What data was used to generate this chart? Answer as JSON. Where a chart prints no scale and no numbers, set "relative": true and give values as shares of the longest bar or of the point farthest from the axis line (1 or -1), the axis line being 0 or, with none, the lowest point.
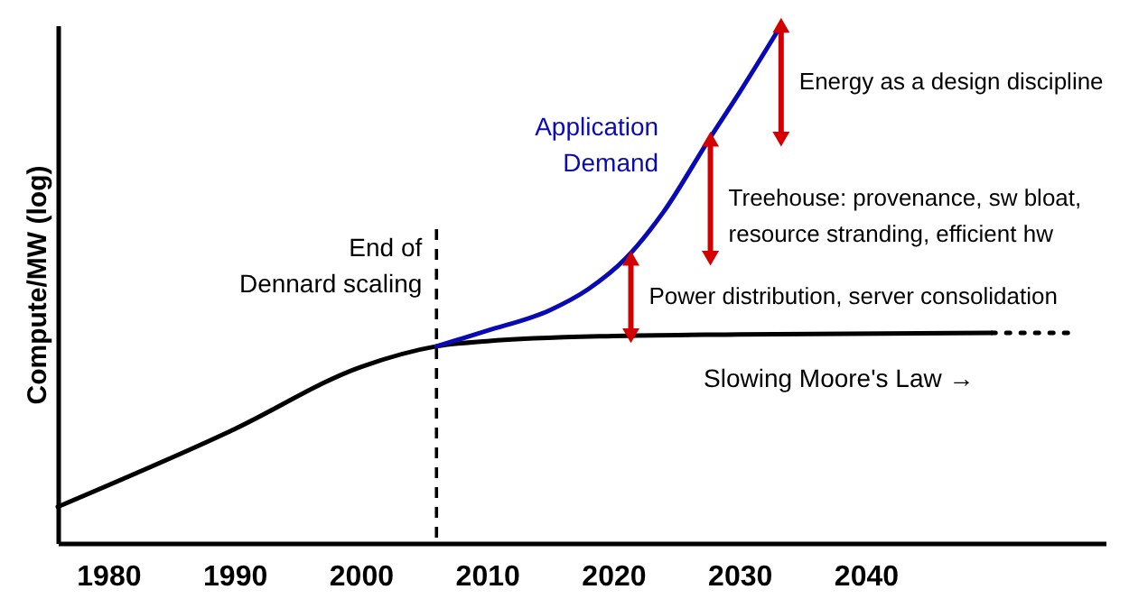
{
  "chart_data": {
    "type": "line",
    "relative": true,
    "ylabel": "Compute/MW (log)",
    "xlim": [
      1976,
      2059
    ],
    "xticks": [
      1980,
      1990,
      2000,
      2010,
      2020,
      2030,
      2040
    ],
    "tick_labels": "x",
    "grid": false,
    "marker": "none",
    "line_style": "solid",
    "series": [
      {
        "name": "Slowing Moore's Law →",
        "color": "#000000",
        "x": [
          1976,
          1990,
          2000,
          2006,
          2010,
          2020,
          2030,
          2050
        ],
        "values": [
          0.07,
          0.22,
          0.34,
          0.38,
          0.39,
          0.4,
          0.403,
          0.406
        ]
      },
      {
        "name": "Application Demand",
        "color": "#0a0ab4",
        "x": [
          2006,
          2010,
          2015,
          2018,
          2021,
          2024,
          2027.6,
          2030,
          2033.3
        ],
        "values": [
          0.38,
          0.41,
          0.45,
          0.49,
          0.55,
          0.64,
          0.78,
          0.87,
          1.0
        ]
      },
      {
        "color": "#000000",
        "line_style": "dotted",
        "x": [
          2050,
          2056.2
        ],
        "values": [
          0.406,
          0.406
        ]
      }
    ],
    "ref_lines": [
      {
        "axis": "x",
        "value": 2006,
        "label": "End of\nDennard scaling",
        "line_style": "dashed"
      }
    ],
    "annotations": [
      {
        "text": "Power distribution, server consolidation",
        "x": 2021.4,
        "y": 0.55
      },
      {
        "text": "Treehouse: provenance, sw bloat,\nresource stranding, efficient hw",
        "x": 2027.7,
        "y": 0.78
      },
      {
        "text": "Energy as a design discipline",
        "x": 2033.3,
        "y": 1.0
      }
    ]
  }
}
